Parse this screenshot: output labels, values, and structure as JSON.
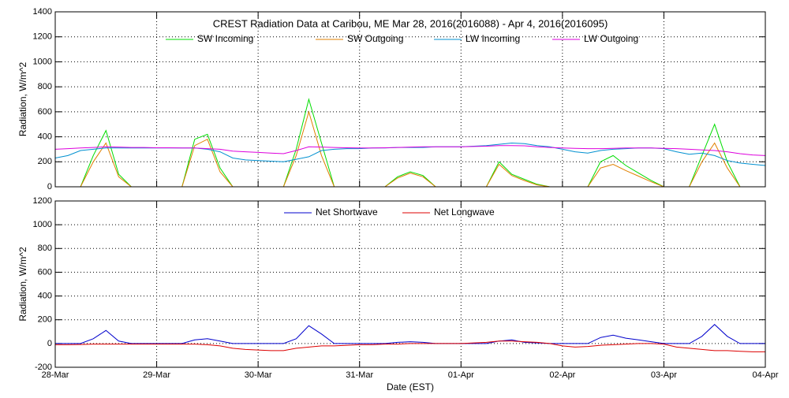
{
  "chart_data": [
    {
      "type": "line",
      "title": "CREST Radiation Data at Caribou, ME   Mar 28, 2016(2016088) - Apr  4, 2016(2016095)",
      "y_label": "Radiation, W/m^2",
      "x": [
        0,
        0.125,
        0.25,
        0.375,
        0.5,
        0.625,
        0.75,
        0.875,
        1,
        1.125,
        1.25,
        1.375,
        1.5,
        1.625,
        1.75,
        1.875,
        2,
        2.125,
        2.25,
        2.375,
        2.5,
        2.625,
        2.75,
        2.875,
        3,
        3.125,
        3.25,
        3.375,
        3.5,
        3.625,
        3.75,
        3.875,
        4,
        4.125,
        4.25,
        4.375,
        4.5,
        4.625,
        4.75,
        4.875,
        5,
        5.125,
        5.25,
        5.375,
        5.5,
        5.625,
        5.75,
        5.875,
        6,
        6.125,
        6.25,
        6.375,
        6.5,
        6.625,
        6.75,
        6.875,
        7
      ],
      "xlim": [
        0,
        7
      ],
      "xticks": [
        0,
        1,
        2,
        3,
        4,
        5,
        6,
        7
      ],
      "ylim": [
        0,
        1400
      ],
      "yticks": [
        0,
        200,
        400,
        600,
        800,
        1000,
        1200,
        1400
      ],
      "grid": true,
      "series": [
        {
          "name": "SW Incoming",
          "color": "#00dd00",
          "values": [
            0,
            0,
            0,
            250,
            450,
            100,
            0,
            0,
            0,
            0,
            0,
            380,
            420,
            150,
            0,
            0,
            0,
            0,
            0,
            300,
            700,
            350,
            0,
            0,
            0,
            0,
            0,
            80,
            120,
            90,
            0,
            0,
            0,
            0,
            0,
            200,
            100,
            60,
            20,
            0,
            0,
            0,
            0,
            200,
            250,
            170,
            110,
            50,
            0,
            0,
            0,
            250,
            500,
            200,
            0,
            0,
            0
          ]
        },
        {
          "name": "SW Outgoing",
          "color": "#e08000",
          "values": [
            0,
            0,
            0,
            200,
            350,
            80,
            0,
            0,
            0,
            0,
            0,
            330,
            380,
            120,
            0,
            0,
            0,
            0,
            0,
            250,
            600,
            250,
            0,
            0,
            0,
            0,
            0,
            70,
            110,
            80,
            0,
            0,
            0,
            0,
            0,
            180,
            90,
            50,
            15,
            0,
            0,
            0,
            0,
            150,
            180,
            130,
            85,
            40,
            0,
            0,
            0,
            200,
            350,
            150,
            0,
            0,
            0
          ]
        },
        {
          "name": "LW Incoming",
          "color": "#0090d0",
          "values": [
            230,
            250,
            290,
            300,
            310,
            310,
            310,
            310,
            310,
            310,
            310,
            310,
            300,
            280,
            230,
            215,
            210,
            205,
            200,
            220,
            240,
            290,
            300,
            305,
            305,
            310,
            310,
            315,
            315,
            315,
            320,
            320,
            320,
            325,
            330,
            340,
            350,
            345,
            330,
            320,
            300,
            280,
            270,
            290,
            300,
            305,
            310,
            310,
            305,
            280,
            260,
            270,
            250,
            210,
            190,
            180,
            170
          ]
        },
        {
          "name": "LW Outgoing",
          "color": "#dd00dd",
          "values": [
            300,
            305,
            310,
            315,
            320,
            318,
            315,
            315,
            312,
            312,
            310,
            310,
            305,
            300,
            285,
            280,
            275,
            270,
            265,
            290,
            320,
            318,
            315,
            312,
            310,
            310,
            312,
            315,
            318,
            320,
            320,
            320,
            320,
            322,
            325,
            330,
            330,
            328,
            320,
            315,
            310,
            308,
            305,
            305,
            308,
            310,
            310,
            310,
            308,
            305,
            300,
            295,
            290,
            280,
            265,
            255,
            250
          ]
        }
      ]
    },
    {
      "type": "line",
      "y_label": "Radiation, W/m^2",
      "x_label": "Date (EST)",
      "x": [
        0,
        0.125,
        0.25,
        0.375,
        0.5,
        0.625,
        0.75,
        0.875,
        1,
        1.125,
        1.25,
        1.375,
        1.5,
        1.625,
        1.75,
        1.875,
        2,
        2.125,
        2.25,
        2.375,
        2.5,
        2.625,
        2.75,
        2.875,
        3,
        3.125,
        3.25,
        3.375,
        3.5,
        3.625,
        3.75,
        3.875,
        4,
        4.125,
        4.25,
        4.375,
        4.5,
        4.625,
        4.75,
        4.875,
        5,
        5.125,
        5.25,
        5.375,
        5.5,
        5.625,
        5.75,
        5.875,
        6,
        6.125,
        6.25,
        6.375,
        6.5,
        6.625,
        6.75,
        6.875,
        7
      ],
      "xlim": [
        0,
        7
      ],
      "xticks": [
        {
          "value": 0,
          "label": "28-Mar"
        },
        {
          "value": 1,
          "label": "29-Mar"
        },
        {
          "value": 2,
          "label": "30-Mar"
        },
        {
          "value": 3,
          "label": "31-Mar"
        },
        {
          "value": 4,
          "label": "01-Apr"
        },
        {
          "value": 5,
          "label": "02-Apr"
        },
        {
          "value": 6,
          "label": "03-Apr"
        },
        {
          "value": 7,
          "label": "04-Apr"
        }
      ],
      "ylim": [
        -200,
        1200
      ],
      "yticks": [
        -200,
        0,
        200,
        400,
        600,
        800,
        1000,
        1200
      ],
      "grid": true,
      "series": [
        {
          "name": "Net Shortwave",
          "color": "#0000cc",
          "values": [
            0,
            0,
            0,
            40,
            110,
            20,
            0,
            0,
            0,
            0,
            0,
            30,
            40,
            20,
            0,
            0,
            0,
            0,
            0,
            40,
            150,
            80,
            0,
            0,
            0,
            0,
            0,
            10,
            15,
            10,
            0,
            0,
            0,
            0,
            0,
            20,
            30,
            10,
            5,
            0,
            0,
            0,
            0,
            50,
            70,
            45,
            30,
            15,
            0,
            0,
            0,
            60,
            160,
            60,
            0,
            0,
            0
          ]
        },
        {
          "name": "Net Longwave",
          "color": "#dd0000",
          "values": [
            -10,
            -10,
            -8,
            -5,
            -5,
            -5,
            -5,
            -5,
            -5,
            -5,
            -5,
            -5,
            -10,
            -20,
            -40,
            -50,
            -55,
            -60,
            -60,
            -40,
            -30,
            -20,
            -20,
            -15,
            -10,
            -10,
            -5,
            -5,
            0,
            0,
            0,
            0,
            0,
            5,
            10,
            20,
            20,
            15,
            10,
            0,
            -20,
            -30,
            -25,
            -15,
            -10,
            -5,
            0,
            0,
            -5,
            -30,
            -40,
            -50,
            -60,
            -60,
            -65,
            -70,
            -70
          ]
        }
      ]
    }
  ]
}
